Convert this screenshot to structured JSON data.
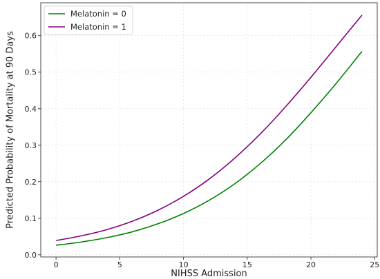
{
  "chart_data": {
    "type": "line",
    "title": "",
    "xlabel": "NIHSS Admission",
    "ylabel": "Predicted Probability of Mortality at 90 Days",
    "xlim": [
      -1.2,
      25.2
    ],
    "ylim": [
      -0.006,
      0.69
    ],
    "xticks": [
      0,
      5,
      10,
      15,
      20,
      25
    ],
    "yticks": [
      0.0,
      0.1,
      0.2,
      0.3,
      0.4,
      0.5,
      0.6
    ],
    "ytick_labels": [
      "0.0",
      "0.1",
      "0.2",
      "0.3",
      "0.4",
      "0.5",
      "0.6"
    ],
    "grid": true,
    "legend_position": "top-left",
    "x": [
      0,
      2,
      4,
      6,
      8,
      10,
      12,
      14,
      16,
      18,
      20,
      22,
      24
    ],
    "series": [
      {
        "name": "Melatonin = 0",
        "color": "#008000",
        "values": [
          0.026,
          0.035,
          0.047,
          0.063,
          0.085,
          0.113,
          0.149,
          0.194,
          0.249,
          0.314,
          0.389,
          0.47,
          0.557
        ]
      },
      {
        "name": "Melatonin = 1",
        "color": "#800080",
        "values": [
          0.039,
          0.052,
          0.069,
          0.092,
          0.122,
          0.16,
          0.207,
          0.264,
          0.33,
          0.405,
          0.486,
          0.571,
          0.656
        ]
      }
    ]
  }
}
